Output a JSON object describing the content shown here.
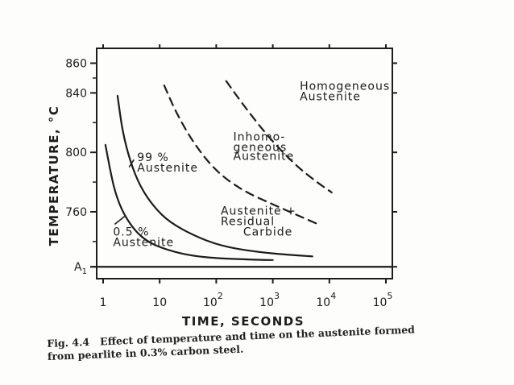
{
  "chart_data": {
    "type": "line",
    "xlabel": "TIME, SECONDS",
    "ylabel": "TEMPERATURE, °C",
    "xscale": "log",
    "xlim": [
      1,
      100000
    ],
    "ylim": [
      715,
      870
    ],
    "x_tick_labels": [
      {
        "value": 1,
        "label": "1"
      },
      {
        "value": 10,
        "label": "10"
      },
      {
        "value": 100,
        "label": "10",
        "exp": "2"
      },
      {
        "value": 1000,
        "label": "10",
        "exp": "3"
      },
      {
        "value": 10000,
        "label": "10",
        "exp": "4"
      },
      {
        "value": 100000,
        "label": "10",
        "exp": "5"
      }
    ],
    "y_tick_labels": [
      {
        "value": 860,
        "label": "860"
      },
      {
        "value": 840,
        "label": "840"
      },
      {
        "value": 800,
        "label": "800"
      },
      {
        "value": 760,
        "label": "760"
      },
      {
        "value": 723,
        "label": "A",
        "sub": "1"
      }
    ],
    "series": [
      {
        "name": "0.5 % Austenite",
        "style": "solid",
        "x": [
          1.1,
          1.3,
          1.6,
          2.2,
          3.5,
          6,
          12,
          30,
          80,
          300,
          1000
        ],
        "y": [
          805,
          790,
          774,
          760,
          748,
          740,
          735,
          731,
          729,
          728,
          727.5
        ]
      },
      {
        "name": "99 % Austenite",
        "style": "solid",
        "x": [
          1.8,
          2.2,
          3,
          4.5,
          8,
          15,
          40,
          120,
          500,
          2000,
          5000
        ],
        "y": [
          838,
          814,
          794,
          777,
          763,
          753,
          744,
          737,
          733,
          731,
          730
        ]
      },
      {
        "name": "Inhomogeneous Austenite",
        "style": "dashed",
        "x": [
          12,
          20,
          40,
          100,
          300,
          1000,
          3000,
          6000
        ],
        "y": [
          845,
          826,
          806,
          787,
          774,
          765,
          757,
          752
        ]
      },
      {
        "name": "Homogeneous Austenite",
        "style": "dashed",
        "x": [
          150,
          300,
          700,
          1500,
          3000,
          6000,
          11000
        ],
        "y": [
          848,
          832,
          814,
          800,
          789,
          780,
          773
        ]
      }
    ],
    "reference_line": {
      "label": "A",
      "sub": "1",
      "y": 723
    },
    "annotations": [
      {
        "text": "Homogeneous",
        "x": 3000,
        "y": 842
      },
      {
        "text": "Austenite",
        "x": 3000,
        "y": 835
      },
      {
        "text": "Inhomo-",
        "x": 200,
        "y": 808
      },
      {
        "text": "geneous",
        "x": 200,
        "y": 801
      },
      {
        "text": "Austenite",
        "x": 200,
        "y": 795
      },
      {
        "text": "99 %",
        "x": 4,
        "y": 794
      },
      {
        "text": "Austenite",
        "x": 4,
        "y": 787
      },
      {
        "text": "Austenite +",
        "x": 120,
        "y": 758
      },
      {
        "text": "Residual",
        "x": 120,
        "y": 751
      },
      {
        "text": "Carbide",
        "x": 300,
        "y": 744
      },
      {
        "text": "0.5 %",
        "x": 1.5,
        "y": 744
      },
      {
        "text": "Austenite",
        "x": 1.5,
        "y": 737
      }
    ]
  },
  "caption": {
    "label": "Fig. 4.4",
    "text": "Effect of temperature and time on the austenite formed from pearlite in 0.3% carbon steel."
  }
}
